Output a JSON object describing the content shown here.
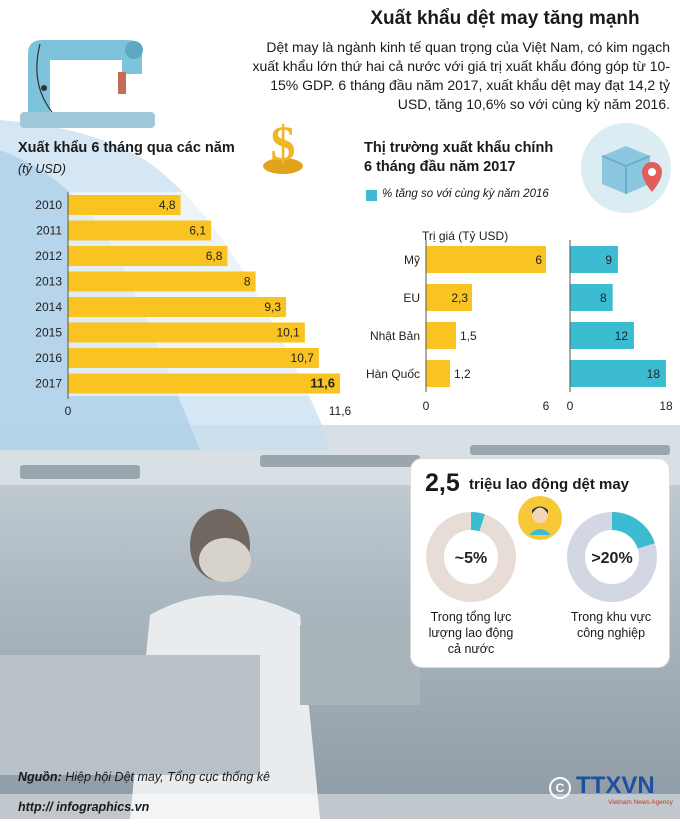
{
  "title": "Xuất khẩu dệt may tăng mạnh",
  "intro": "Dệt may là ngành kinh tế quan trọng của Việt Nam, có kim ngạch xuất khẩu lớn thứ hai cả nước với giá trị xuất khẩu đóng góp từ 10-15% GDP. 6 tháng đầu năm 2017, xuất khẩu dệt may đạt 14,2 tỷ USD, tăng 10,6% so với cùng kỳ năm 2016.",
  "colors": {
    "bar": "#f9c321",
    "teal": "#3cbcd1",
    "donut_gray": "#e8ddd6",
    "donut_gray2": "#d3d7e3"
  },
  "icons": [
    "sewing-machine-icon",
    "dollar-coin-icon",
    "box-location-icon",
    "worker-avatar-icon"
  ],
  "left_chart": {
    "heading": "Xuất khẩu 6 tháng qua các năm",
    "unit": "(tỷ USD)",
    "axis_ticks": [
      "0",
      "11,6"
    ]
  },
  "right_chart": {
    "heading_line1": "Thị trường xuất khẩu chính",
    "heading_line2": "6 tháng đầu năm 2017",
    "legend": "% tăng so với cùng kỳ năm 2016",
    "value_label": "Trị giá (Tỷ USD)",
    "axis_ticks_left": [
      "0",
      "6"
    ],
    "axis_ticks_right": [
      "0",
      "18"
    ]
  },
  "chart_data": [
    {
      "type": "bar",
      "title": "Xuất khẩu 6 tháng qua các năm",
      "ylabel": "(tỷ USD)",
      "categories": [
        "2010",
        "2011",
        "2012",
        "2013",
        "2014",
        "2015",
        "2016",
        "2017"
      ],
      "values": [
        4.8,
        6.1,
        6.8,
        8,
        9.3,
        10.1,
        10.7,
        11.6
      ],
      "labels": [
        "4,8",
        "6,1",
        "6,8",
        "8",
        "9,3",
        "10,1",
        "10,7",
        "11,6"
      ],
      "xlim": [
        0,
        11.6
      ]
    },
    {
      "type": "bar",
      "title": "Thị trường xuất khẩu chính 6 tháng đầu năm 2017",
      "categories": [
        "Mỹ",
        "EU",
        "Nhật Bản",
        "Hàn Quốc"
      ],
      "series": [
        {
          "name": "Trị giá (Tỷ USD)",
          "values": [
            6,
            2.3,
            1.5,
            1.2
          ],
          "labels": [
            "6",
            "2,3",
            "1,5",
            "1,2"
          ],
          "xlim": [
            0,
            6
          ]
        },
        {
          "name": "% tăng so với cùng kỳ năm 2016",
          "values": [
            9,
            8,
            12,
            18
          ],
          "labels": [
            "9",
            "8",
            "12",
            "18"
          ],
          "xlim": [
            0,
            18
          ]
        }
      ]
    }
  ],
  "labor": {
    "big": "2,5",
    "unit": "triệu lao động dệt may",
    "donut1": {
      "share": 0.05,
      "label": "~5%",
      "caption_lines": [
        "Trong tổng lực",
        "lượng lao động",
        "cả nước"
      ]
    },
    "donut2": {
      "share": 0.2,
      "label": ">20%",
      "caption_lines": [
        "Trong khu vực",
        "công nghiệp"
      ]
    }
  },
  "source_label": "Nguồn:",
  "source_text": "Hiệp hội Dệt may, Tổng cục thống kê",
  "website": "http:// infographics.vn",
  "logo": {
    "text": "TTXVN",
    "sub": "Vietnam News Agency"
  }
}
